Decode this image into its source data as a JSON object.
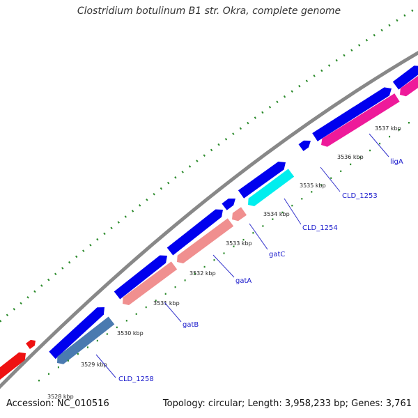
{
  "title": "Clostridium botulinum B1 str. Okra, complete genome",
  "footer": {
    "accession": "Accession: NC_010516",
    "summary": "Topology: circular; Length: 3,958,233 bp; Genes: 3,761"
  },
  "colors": {
    "backbone": "#888888",
    "forward": "#0000ee",
    "tick": "#2a8a2a"
  },
  "ticks": [
    "3528 kbp",
    "3529 kbp",
    "3530 kbp",
    "3531 kbp",
    "3532 kbp",
    "3533 kbp",
    "3534 kbp",
    "3535 kbp",
    "3536 kbp",
    "3537 kbp"
  ],
  "gene_labels": [
    {
      "name": "CLD_1258",
      "color": "#4a7ab0"
    },
    {
      "name": "gatB",
      "color": "#f08f8f"
    },
    {
      "name": "gatA",
      "color": "#f08f8f"
    },
    {
      "name": "gatC",
      "color": "#f08f8f"
    },
    {
      "name": "CLD_1254",
      "color": "#00eeee"
    },
    {
      "name": "CLD_1253",
      "color": "#0000ee"
    },
    {
      "name": "ligA",
      "color": "#ee1a9a"
    }
  ],
  "other_genes_color": "#ee1111"
}
